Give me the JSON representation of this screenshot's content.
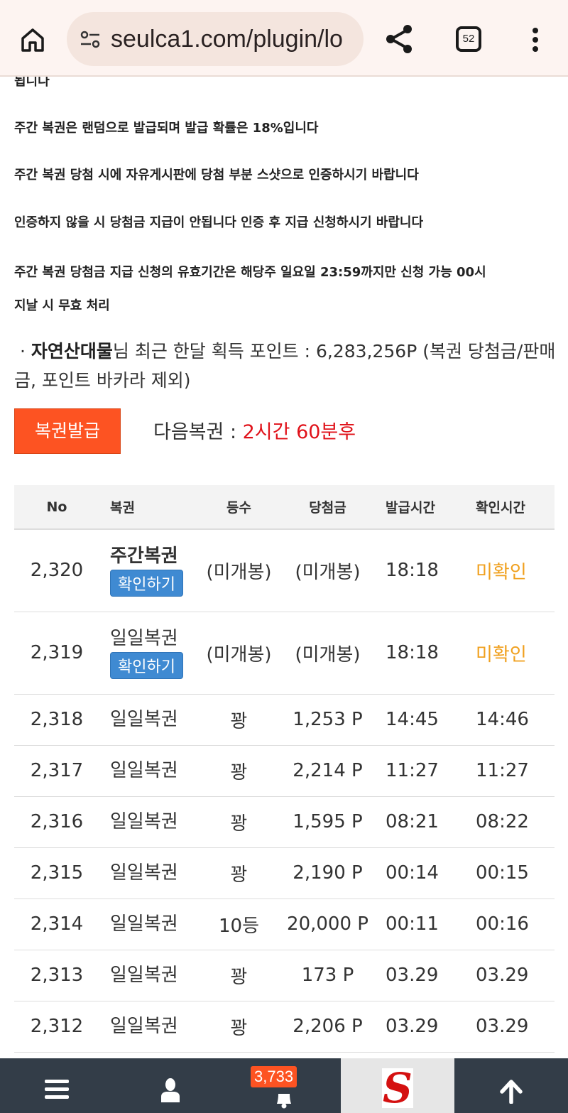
{
  "browser": {
    "url": "seulca1.com/plugin/lo",
    "tab_count": "52"
  },
  "notices": {
    "partial": "됩니다",
    "lines": [
      "주간 복권은 랜덤으로 발급되며 발급 확률은 18%입니다",
      "주간 복권 당첨 시에 자유게시판에 당첨 부분 스샷으로 인증하시기 바랍니다",
      "인증하지 않을 시 당첨금 지급이 안됩니다 인증 후 지급 신청하시기 바랍니다",
      "주간 복권 당첨금 지급 신청의 유효기간은 해당주 일요일 23:59까지만 신청 가능 00시",
      "지날 시 무효 처리"
    ]
  },
  "points": {
    "bullet": "·",
    "username": "자연산대물",
    "text": "님 최근 한달 획득 포인트 : 6,283,256P (복권 당첨금/판매금, 포인트 바카라 제외)"
  },
  "issue_button": "복권발급",
  "next": {
    "label": "다음복권 : ",
    "value": "2시간 60분후"
  },
  "table": {
    "headers": [
      "No",
      "복권",
      "등수",
      "당첨금",
      "발급시간",
      "확인시간"
    ],
    "confirm_label": "확인하기",
    "rows": [
      {
        "no": "2,320",
        "name": "주간복권",
        "rank": "(미개봉)",
        "prize": "(미개봉)",
        "issued": "18:18",
        "checked": "미확인"
      },
      {
        "no": "2,319",
        "name": "일일복권",
        "rank": "(미개봉)",
        "prize": "(미개봉)",
        "issued": "18:18",
        "checked": "미확인"
      },
      {
        "no": "2,318",
        "name": "일일복권",
        "rank": "꽝",
        "prize": "1,253 P",
        "issued": "14:45",
        "checked": "14:46"
      },
      {
        "no": "2,317",
        "name": "일일복권",
        "rank": "꽝",
        "prize": "2,214 P",
        "issued": "11:27",
        "checked": "11:27"
      },
      {
        "no": "2,316",
        "name": "일일복권",
        "rank": "꽝",
        "prize": "1,595 P",
        "issued": "08:21",
        "checked": "08:22"
      },
      {
        "no": "2,315",
        "name": "일일복권",
        "rank": "꽝",
        "prize": "2,190 P",
        "issued": "00:14",
        "checked": "00:15"
      },
      {
        "no": "2,314",
        "name": "일일복권",
        "rank": "10등",
        "prize": "20,000 P",
        "issued": "00:11",
        "checked": "00:16"
      },
      {
        "no": "2,313",
        "name": "일일복권",
        "rank": "꽝",
        "prize": "173 P",
        "issued": "03.29",
        "checked": "03.29"
      },
      {
        "no": "2,312",
        "name": "일일복권",
        "rank": "꽝",
        "prize": "2,206 P",
        "issued": "03.29",
        "checked": "03.29"
      }
    ]
  },
  "bottom_nav": {
    "notification_count": "3,733",
    "logo_letter": "S",
    "icons": [
      "menu-icon",
      "user-icon",
      "bell-icon",
      "site-logo",
      "arrow-up-icon"
    ]
  },
  "colors": {
    "accent": "#fd5322",
    "confirm": "#3f8ad2",
    "pending": "#f0a01e",
    "countdown": "#e0121a",
    "nav": "#333d48"
  }
}
